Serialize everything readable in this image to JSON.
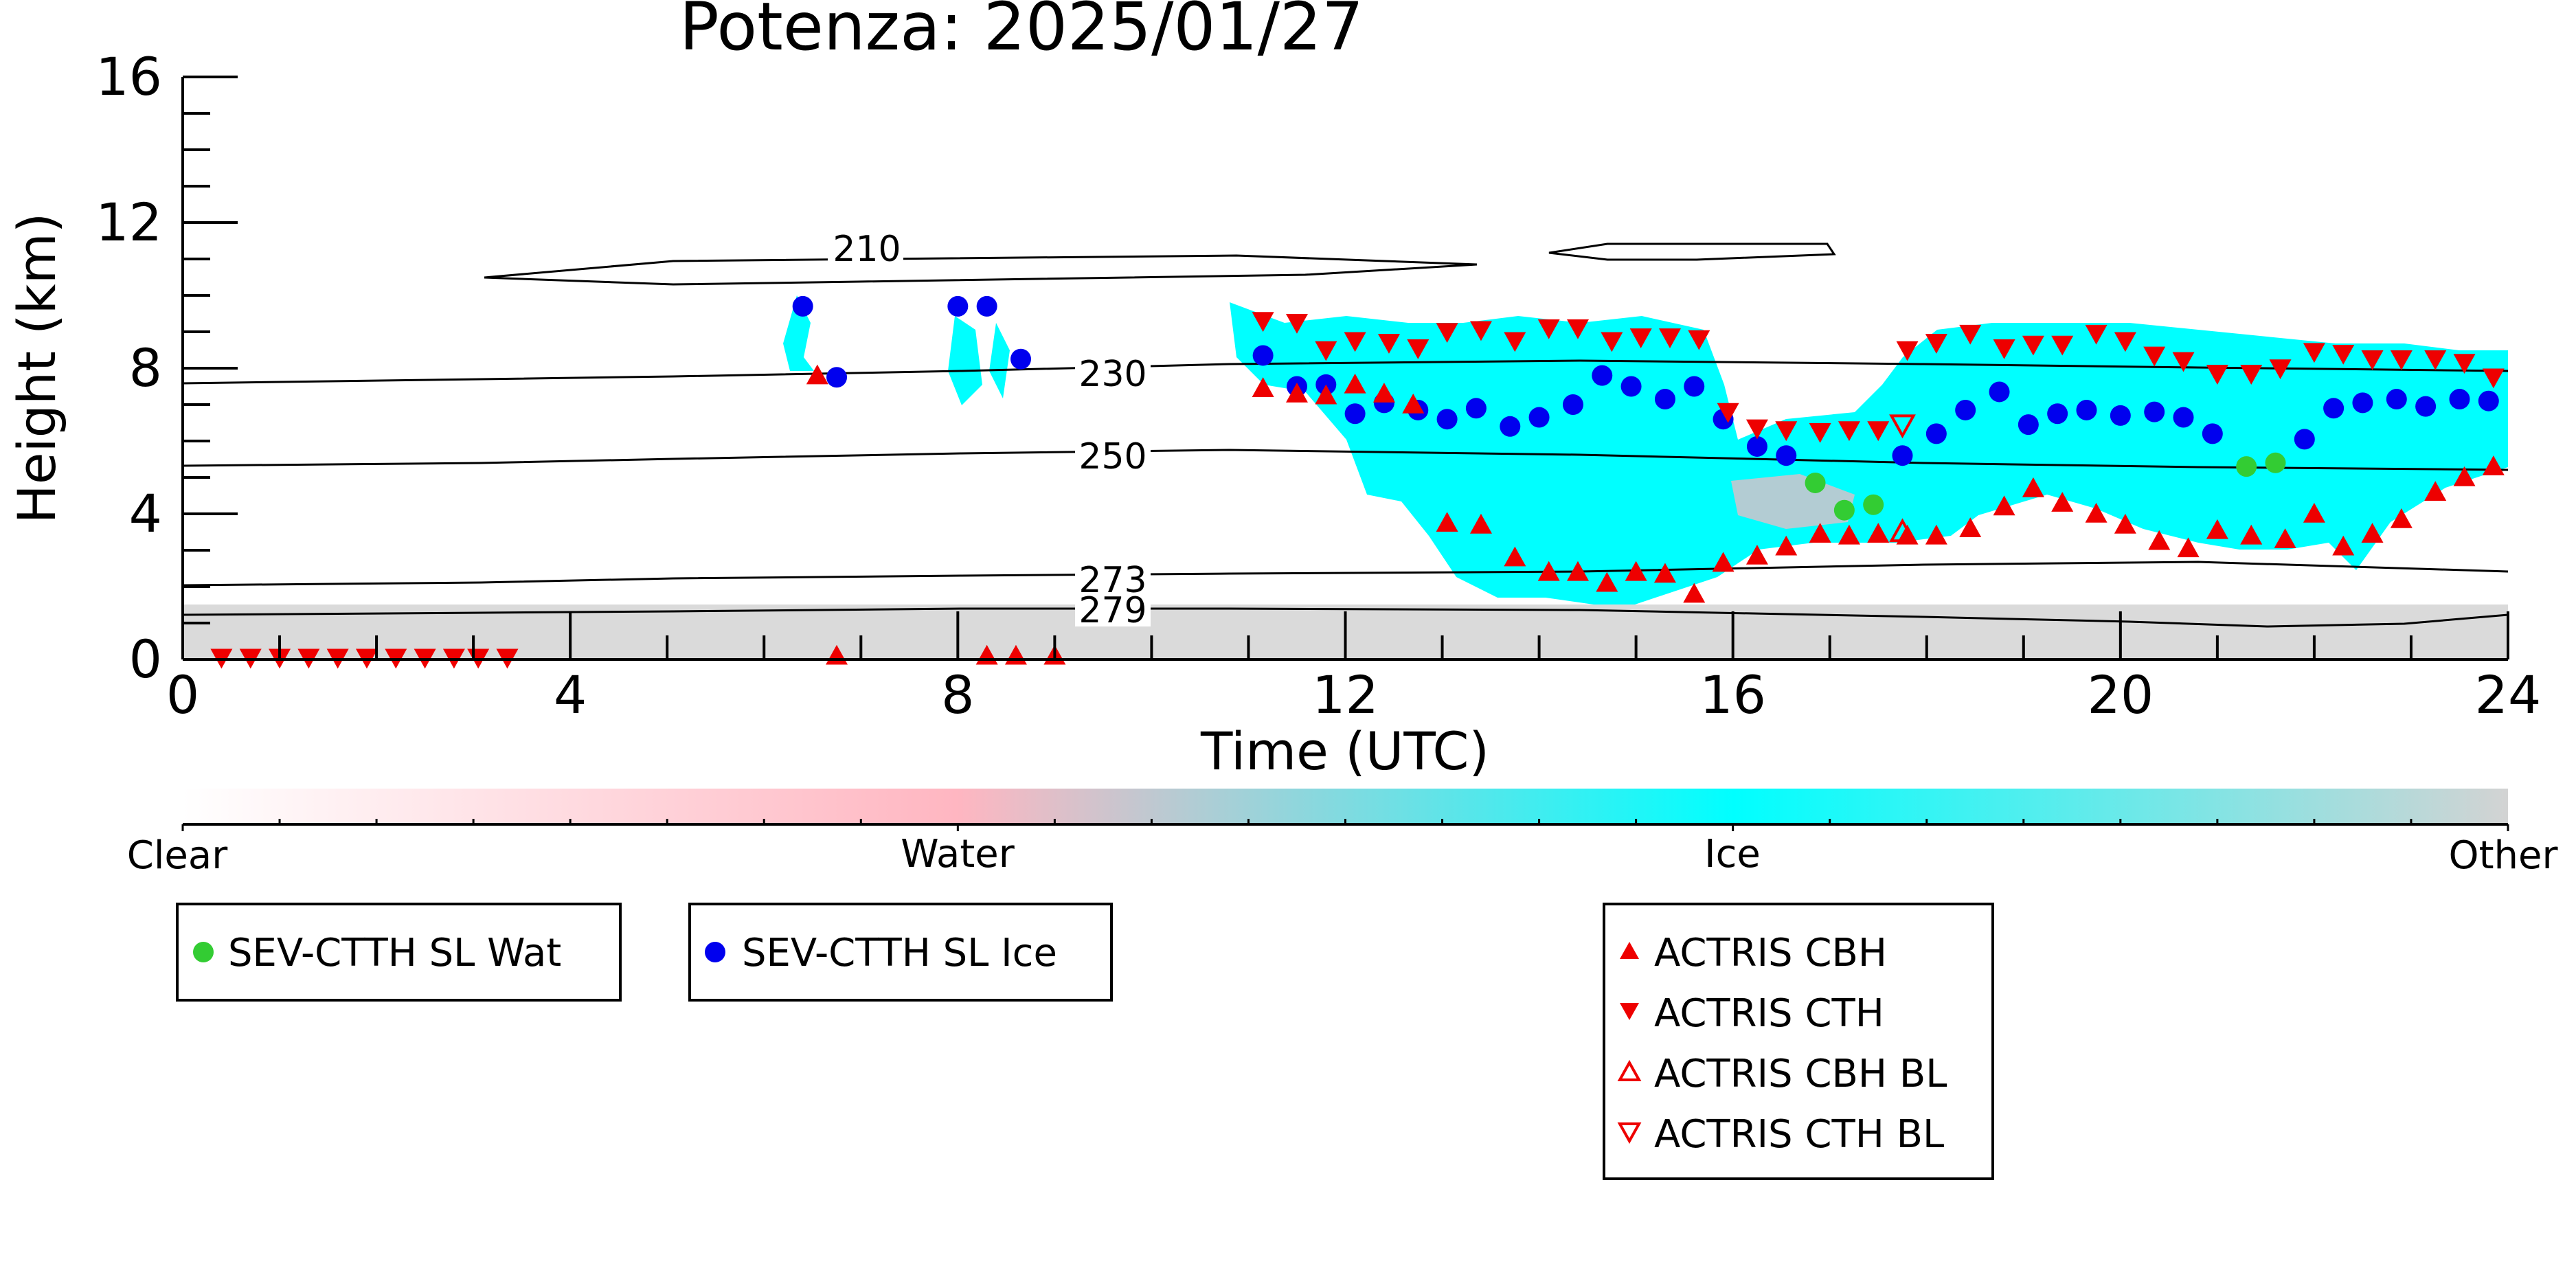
{
  "chart_data": {
    "type": "scatter",
    "title": "Potenza: 2025/01/27",
    "xlabel": "Time (UTC)",
    "ylabel": "Height (km)",
    "xlim": [
      0,
      24
    ],
    "ylim": [
      0,
      16
    ],
    "x_ticks": [
      0,
      4,
      8,
      12,
      16,
      20,
      24
    ],
    "y_ticks": [
      0,
      4,
      8,
      12,
      16
    ],
    "grid": false,
    "colorbar": {
      "labels": [
        "Clear",
        "Water",
        "Ice",
        "Other"
      ],
      "colors": [
        "#ffffff",
        "#ffb6c1",
        "#00ffff",
        "#d3d3d3"
      ]
    },
    "background_fields": [
      {
        "name": "Clear",
        "color": "#ffffff"
      },
      {
        "name": "Water",
        "color": "#ffb6c1"
      },
      {
        "name": "Ice",
        "color": "#00ffff"
      },
      {
        "name": "Other",
        "color": "#d3d3d3"
      }
    ],
    "contour_labels": [
      "210",
      "230",
      "250",
      "273",
      "279"
    ],
    "contours": [
      {
        "label": "210",
        "x": [
          12.0,
          18.0
        ],
        "y": [
          10.7,
          10.75
        ]
      },
      {
        "label": "230",
        "x": [
          0,
          4,
          8,
          12,
          16,
          20,
          24
        ],
        "y": [
          7.6,
          7.7,
          7.8,
          7.85,
          7.8,
          7.75,
          7.8
        ]
      },
      {
        "label": "250",
        "x": [
          0,
          4,
          8,
          12,
          16,
          20,
          24
        ],
        "y": [
          5.3,
          5.35,
          5.45,
          5.5,
          5.45,
          5.3,
          5.2
        ]
      },
      {
        "label": "273",
        "x": [
          0,
          4,
          8,
          12,
          16,
          20,
          24
        ],
        "y": [
          2.0,
          2.1,
          2.15,
          2.2,
          2.3,
          2.45,
          2.35
        ]
      },
      {
        "label": "279",
        "x": [
          0,
          4,
          8,
          12,
          16,
          20,
          24
        ],
        "y": [
          1.25,
          1.3,
          1.35,
          1.35,
          1.35,
          1.1,
          1.15
        ]
      }
    ],
    "series": [
      {
        "name": "SEV-CTTH SL Wat",
        "marker": "circle",
        "color": "#33cc33",
        "x": [
          16.85,
          17.15,
          17.45,
          21.3,
          21.6
        ],
        "y": [
          4.85,
          4.1,
          4.25,
          5.3,
          5.4
        ]
      },
      {
        "name": "SEV-CTTH SL Ice",
        "marker": "circle",
        "color": "#0000ee",
        "x": [
          6.4,
          6.75,
          8.0,
          8.3,
          8.65,
          11.15,
          11.5,
          11.8,
          12.1,
          12.4,
          12.75,
          13.05,
          13.35,
          13.7,
          14.0,
          14.35,
          14.65,
          14.95,
          15.3,
          15.6,
          15.9,
          16.25,
          16.55,
          17.75,
          18.1,
          18.4,
          18.75,
          19.05,
          19.35,
          19.65,
          20.0,
          20.35,
          20.65,
          20.95,
          21.9,
          22.2,
          22.5,
          22.85,
          23.15,
          23.5,
          23.8
        ],
        "y": [
          9.7,
          7.75,
          9.7,
          9.7,
          8.25,
          8.35,
          7.5,
          7.55,
          6.75,
          7.05,
          6.85,
          6.6,
          6.9,
          6.4,
          6.65,
          7.0,
          7.8,
          7.5,
          7.15,
          7.5,
          6.6,
          5.85,
          5.6,
          5.6,
          6.2,
          6.85,
          7.35,
          6.45,
          6.75,
          6.85,
          6.7,
          6.8,
          6.65,
          6.2,
          6.05,
          6.9,
          7.05,
          7.15,
          6.95,
          7.15,
          7.1
        ]
      },
      {
        "name": "ACTRIS CBH",
        "marker": "triangle-up",
        "color": "#ee0000",
        "x": [
          6.55,
          6.75,
          8.3,
          8.6,
          9.0,
          11.15,
          11.5,
          11.8,
          12.1,
          12.4,
          12.7,
          13.05,
          13.4,
          13.75,
          14.1,
          14.4,
          14.7,
          15.0,
          15.3,
          15.6,
          15.9,
          16.25,
          16.55,
          16.9,
          17.2,
          17.5,
          17.8,
          18.1,
          18.45,
          18.8,
          19.1,
          19.4,
          19.75,
          20.05,
          20.4,
          20.7,
          21.0,
          21.35,
          21.7,
          22.0,
          22.3,
          22.6,
          22.9,
          23.25,
          23.55,
          23.85
        ],
        "y": [
          7.8,
          0.1,
          0.1,
          0.1,
          0.1,
          7.45,
          7.3,
          7.25,
          7.55,
          7.3,
          7.0,
          3.75,
          3.7,
          2.8,
          2.4,
          2.4,
          2.1,
          2.4,
          2.35,
          1.8,
          2.65,
          2.85,
          3.1,
          3.45,
          3.4,
          3.45,
          3.4,
          3.4,
          3.6,
          4.2,
          4.7,
          4.3,
          4.0,
          3.7,
          3.25,
          3.05,
          3.55,
          3.4,
          3.3,
          4.0,
          3.1,
          3.45,
          3.85,
          4.6,
          5.0,
          5.3
        ]
      },
      {
        "name": "ACTRIS CTH",
        "marker": "triangle-down",
        "color": "#ee0000",
        "x": [
          0.4,
          0.7,
          1.0,
          1.3,
          1.6,
          1.9,
          2.2,
          2.5,
          2.8,
          3.05,
          3.35,
          11.15,
          11.5,
          11.8,
          12.1,
          12.45,
          12.75,
          13.05,
          13.4,
          13.75,
          14.1,
          14.4,
          14.75,
          15.05,
          15.35,
          15.65,
          15.95,
          16.25,
          16.55,
          16.9,
          17.2,
          17.5,
          17.8,
          18.1,
          18.45,
          18.8,
          19.1,
          19.4,
          19.75,
          20.05,
          20.35,
          20.65,
          21.0,
          21.35,
          21.65,
          22.0,
          22.3,
          22.6,
          22.9,
          23.25,
          23.55,
          23.85
        ],
        "y": [
          0.05,
          0.05,
          0.05,
          0.05,
          0.05,
          0.05,
          0.05,
          0.05,
          0.05,
          0.05,
          0.05,
          9.3,
          9.25,
          8.5,
          8.75,
          8.7,
          8.55,
          9.0,
          9.05,
          8.75,
          9.1,
          9.1,
          8.75,
          8.85,
          8.85,
          8.8,
          6.8,
          6.35,
          6.3,
          6.25,
          6.3,
          6.3,
          8.5,
          8.7,
          8.95,
          8.55,
          8.65,
          8.65,
          8.95,
          8.75,
          8.35,
          8.2,
          7.85,
          7.85,
          8.0,
          8.45,
          8.4,
          8.25,
          8.25,
          8.25,
          8.15,
          7.75
        ]
      },
      {
        "name": "ACTRIS CBH BL",
        "marker": "triangle-up-open",
        "color": "#ee0000",
        "x": [
          17.75
        ],
        "y": [
          3.5
        ]
      },
      {
        "name": "ACTRIS CTH BL",
        "marker": "triangle-down-open",
        "color": "#ee0000",
        "x": [
          17.75
        ],
        "y": [
          6.45
        ]
      }
    ]
  }
}
